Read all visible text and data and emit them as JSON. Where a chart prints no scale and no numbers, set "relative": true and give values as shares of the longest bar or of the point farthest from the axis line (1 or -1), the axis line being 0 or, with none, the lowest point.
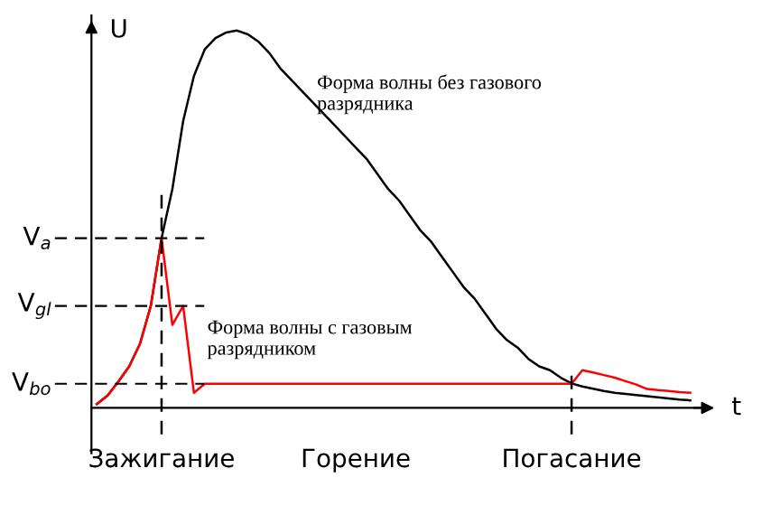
{
  "chart_data": {
    "type": "line",
    "relative": true,
    "xlabel": "t",
    "ylabel": "U",
    "categories": [
      null,
      null,
      null,
      null,
      null,
      null,
      "Зажигание",
      null,
      null,
      null,
      null,
      null,
      null,
      null,
      null,
      null,
      null,
      null,
      null,
      null,
      null,
      null,
      null,
      null,
      "Горение",
      null,
      null,
      null,
      null,
      null,
      null,
      null,
      null,
      null,
      null,
      null,
      null,
      null,
      null,
      null,
      null,
      null,
      null,
      null,
      "Погасание",
      null,
      null,
      null,
      null,
      null,
      null,
      null,
      null,
      null,
      null,
      null
    ],
    "series": [
      {
        "color": "#000000",
        "values": [
          0.01,
          0.033,
          0.07,
          0.11,
          0.17,
          0.27,
          0.45,
          0.58,
          0.76,
          0.88,
          0.95,
          0.98,
          0.995,
          1.0,
          0.99,
          0.97,
          0.94,
          0.9,
          0.87,
          0.84,
          0.81,
          0.78,
          0.75,
          0.72,
          0.69,
          0.66,
          0.62,
          0.58,
          0.55,
          0.51,
          0.47,
          0.44,
          0.4,
          0.36,
          0.32,
          0.29,
          0.25,
          0.21,
          0.18,
          0.16,
          0.13,
          0.11,
          0.1,
          0.08,
          0.065,
          0.057,
          0.051,
          0.045,
          0.04,
          0.037,
          0.034,
          0.031,
          0.028,
          0.025,
          0.022,
          0.02
        ]
      },
      {
        "color": "#ff0000",
        "values": [
          0.01,
          0.033,
          0.07,
          0.11,
          0.17,
          0.27,
          0.45,
          0.22,
          0.27,
          0.04,
          0.064,
          0.064,
          0.064,
          0.064,
          0.064,
          0.064,
          0.064,
          0.064,
          0.064,
          0.064,
          0.064,
          0.064,
          0.064,
          0.064,
          0.064,
          0.064,
          0.064,
          0.064,
          0.064,
          0.064,
          0.064,
          0.064,
          0.064,
          0.064,
          0.064,
          0.064,
          0.064,
          0.064,
          0.064,
          0.064,
          0.064,
          0.064,
          0.064,
          0.064,
          0.064,
          0.1,
          0.094,
          0.087,
          0.08,
          0.071,
          0.062,
          0.05,
          0.047,
          0.045,
          0.042,
          0.04
        ]
      }
    ],
    "ref_lines": [
      {
        "axis": "y",
        "value": 0.45,
        "label": "V$_{a}$",
        "line_style": "dashed"
      },
      {
        "axis": "y",
        "value": 0.27,
        "label": "V$_{gl}$",
        "line_style": "dashed"
      },
      {
        "axis": "y",
        "value": 0.064,
        "label": "V$_{bo}$",
        "line_style": "dashed"
      },
      {
        "axis": "x",
        "value": "Зажигание",
        "line_style": "dashed"
      },
      {
        "axis": "x",
        "value": "Погасание",
        "line_style": "dashed"
      }
    ],
    "annotations": [
      "Форма волны без газового\nразрядника",
      "Форма волны с газовым\nразрядником"
    ],
    "legend": false
  }
}
